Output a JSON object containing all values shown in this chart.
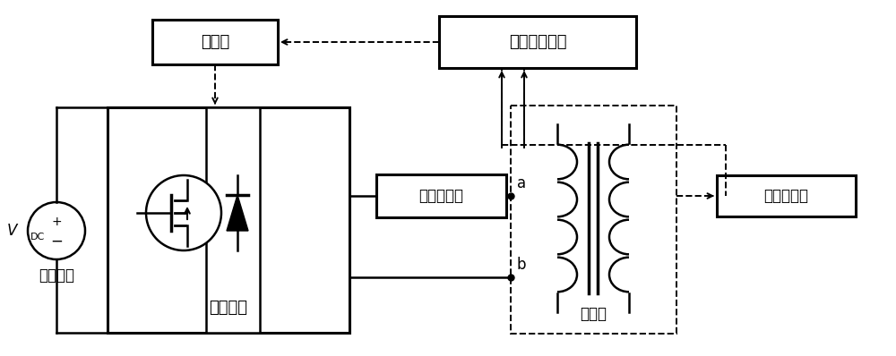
{
  "bg_color": "#ffffff",
  "box_controller_label": "控制器",
  "box_signal_label": "信号采集装置",
  "box_switch_label": "开关电路",
  "box_current_label": "电流互感器",
  "box_transformer_label": "变压器",
  "box_voltage_label": "电压互感器",
  "source_label": "直流电源",
  "vdc_label": "V",
  "vdc_sub": "DC",
  "point_a": "a",
  "point_b": "b",
  "figw": 10.0,
  "figh": 3.98,
  "dpi": 100
}
